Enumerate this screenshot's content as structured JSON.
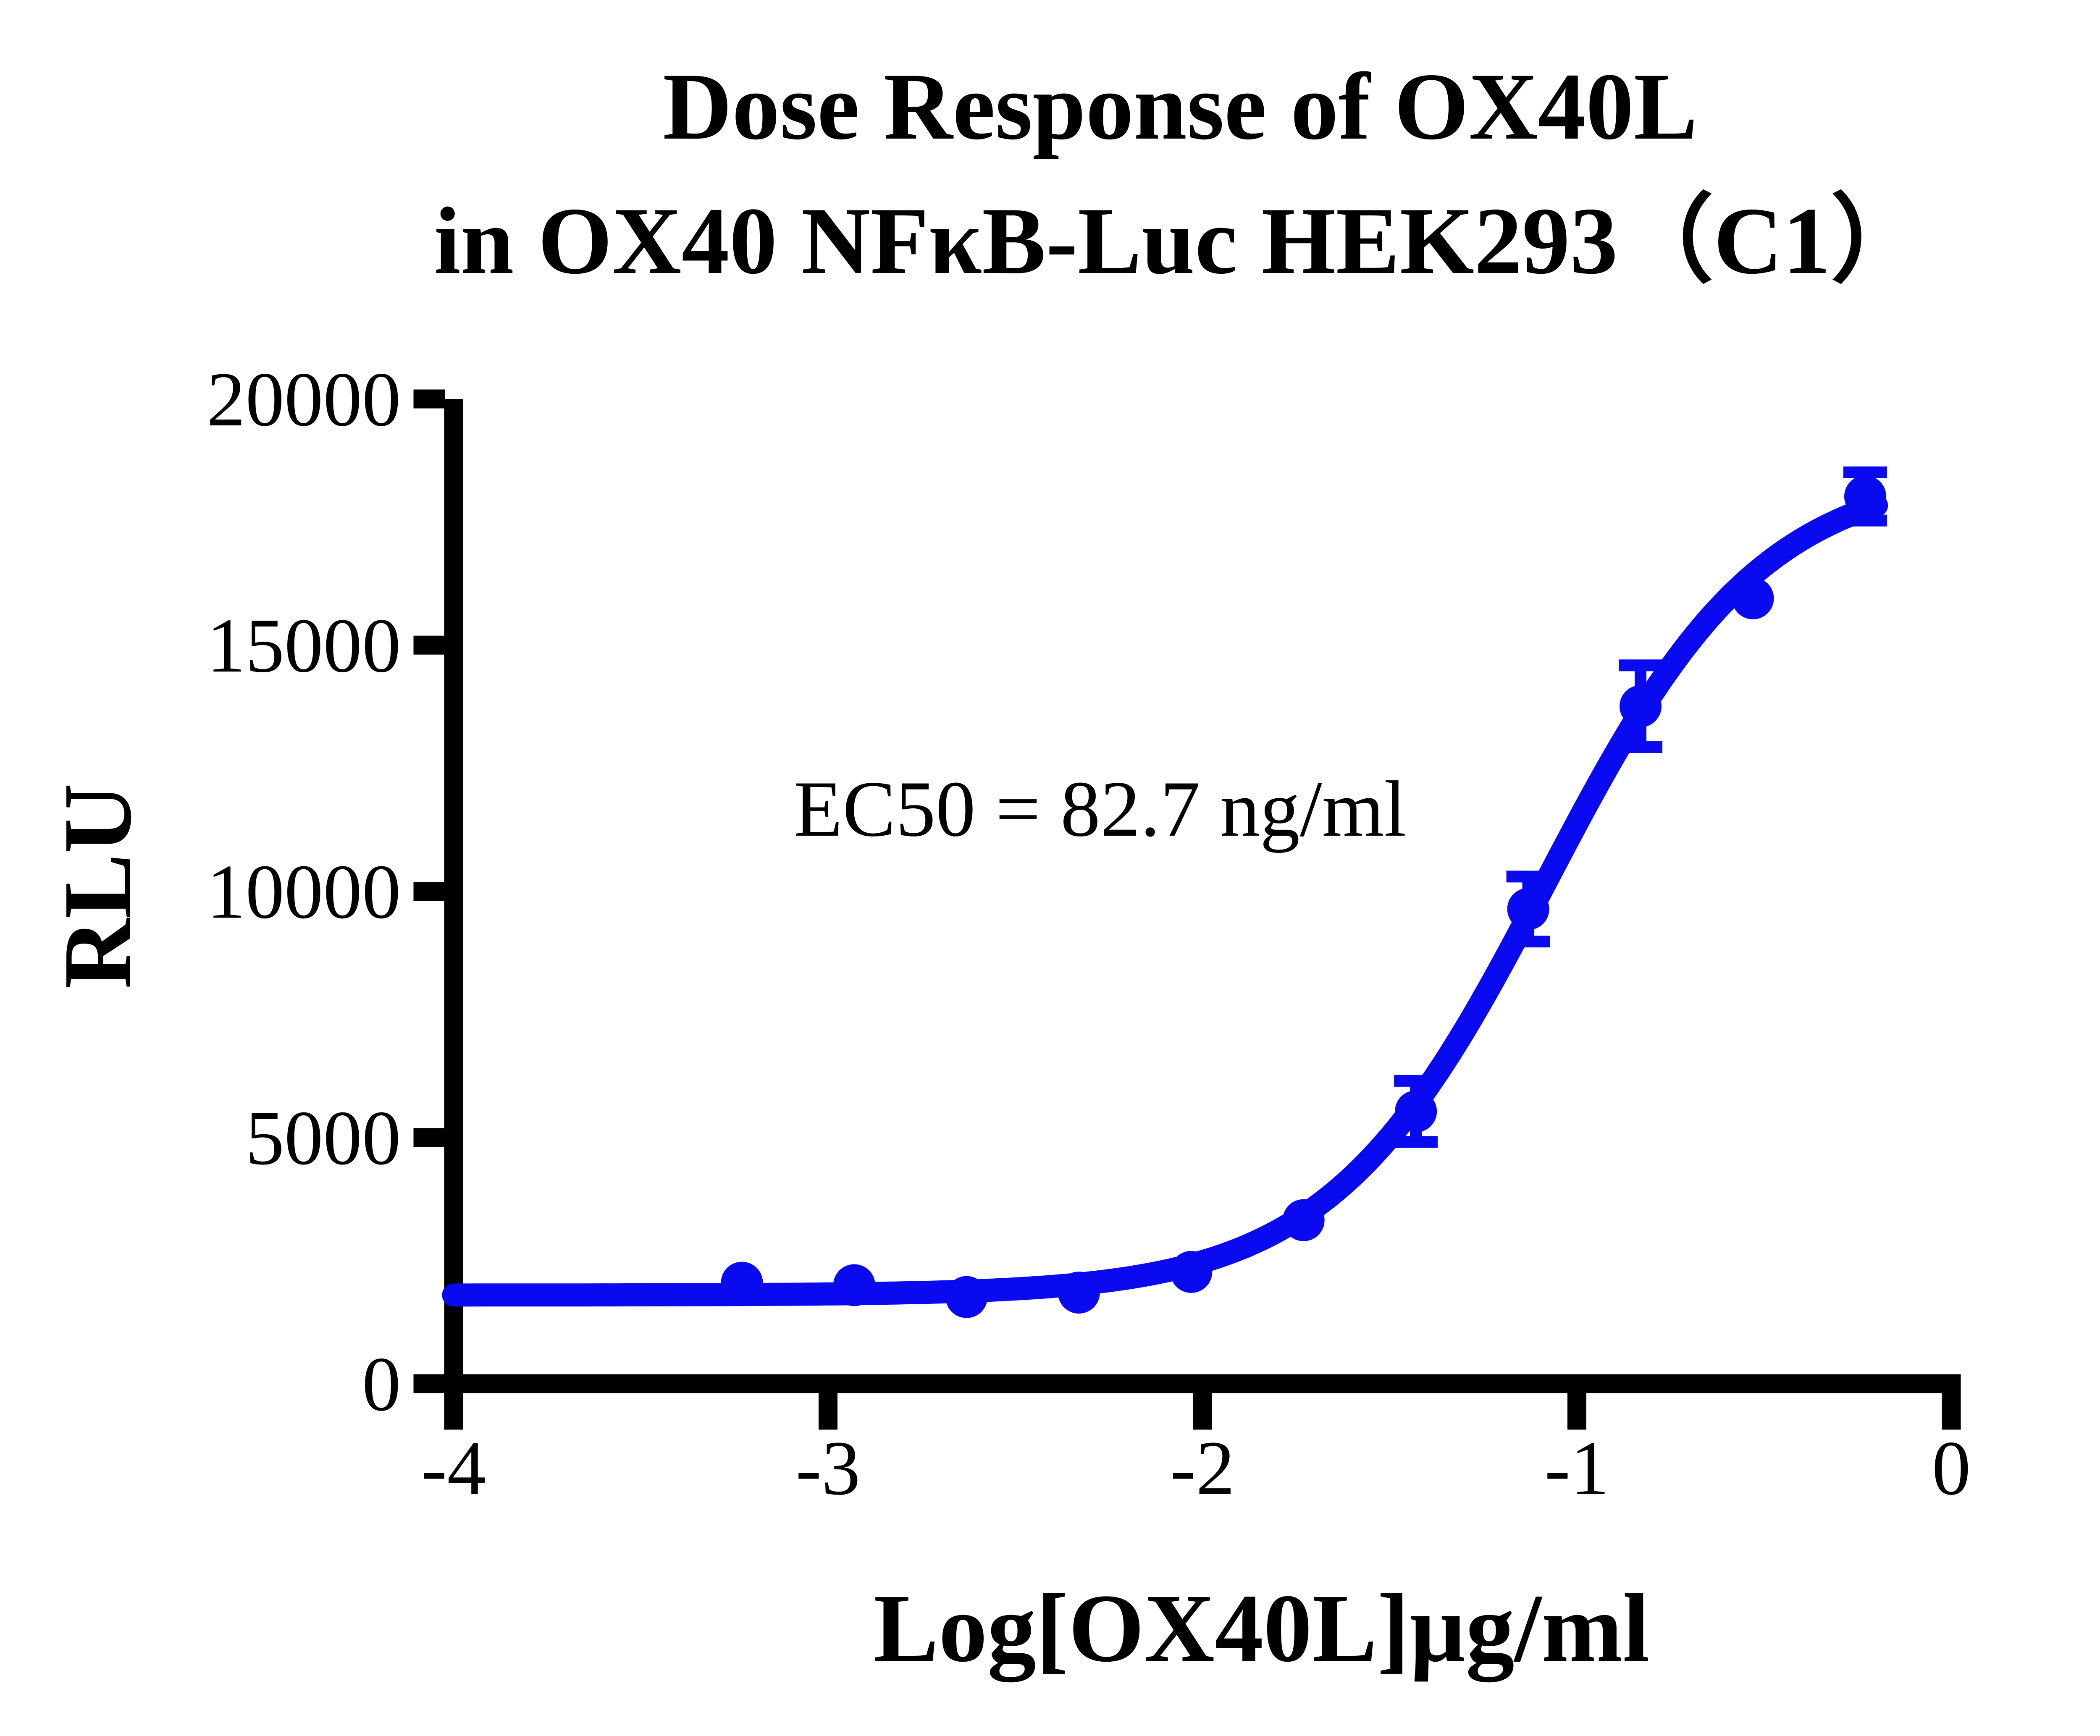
{
  "page": {
    "background_color": "#ffffff",
    "text_color": "#000000"
  },
  "chart_data": {
    "type": "scatter",
    "title_lines": [
      "Dose Response of OX40L",
      "in OX40 NFκB-Luc HEK293（C1）"
    ],
    "title": "Dose Response of OX40L in OX40 NFκB-Luc HEK293（C1）",
    "xlabel": "Log[OX40L]µg/ml",
    "ylabel": "RLU",
    "annotation": "EC50 = 82.7 ng/ml",
    "xlim": [
      -4,
      0
    ],
    "ylim": [
      0,
      20000
    ],
    "x_ticks": [
      "-4",
      "-3",
      "-2",
      "-1",
      "0"
    ],
    "x_tick_values": [
      -4,
      -3,
      -2,
      -1,
      0
    ],
    "y_ticks": [
      "0",
      "5000",
      "10000",
      "15000",
      "20000"
    ],
    "y_tick_values": [
      0,
      5000,
      10000,
      15000,
      20000
    ],
    "grid": false,
    "legend_position": "none",
    "axis_color": "#000000",
    "series": [
      {
        "name": "OX40L",
        "color": "#0a0af0",
        "marker": "circle",
        "x": [
          -3.23,
          -2.93,
          -2.63,
          -2.33,
          -2.03,
          -1.73,
          -1.43,
          -1.13,
          -0.83,
          -0.53,
          -0.23
        ],
        "y": [
          2050,
          2000,
          1760,
          1850,
          2270,
          3320,
          5530,
          9640,
          13760,
          15950,
          18020
        ],
        "yerr": [
          null,
          null,
          null,
          null,
          null,
          null,
          620,
          660,
          830,
          null,
          490
        ]
      }
    ],
    "fit_curve": {
      "model": "4PL",
      "bottom": 1800,
      "top": 18600,
      "log_ec50": -1.082,
      "hill_slope": 1.5,
      "x_start": -4,
      "x_end": -0.2
    }
  }
}
